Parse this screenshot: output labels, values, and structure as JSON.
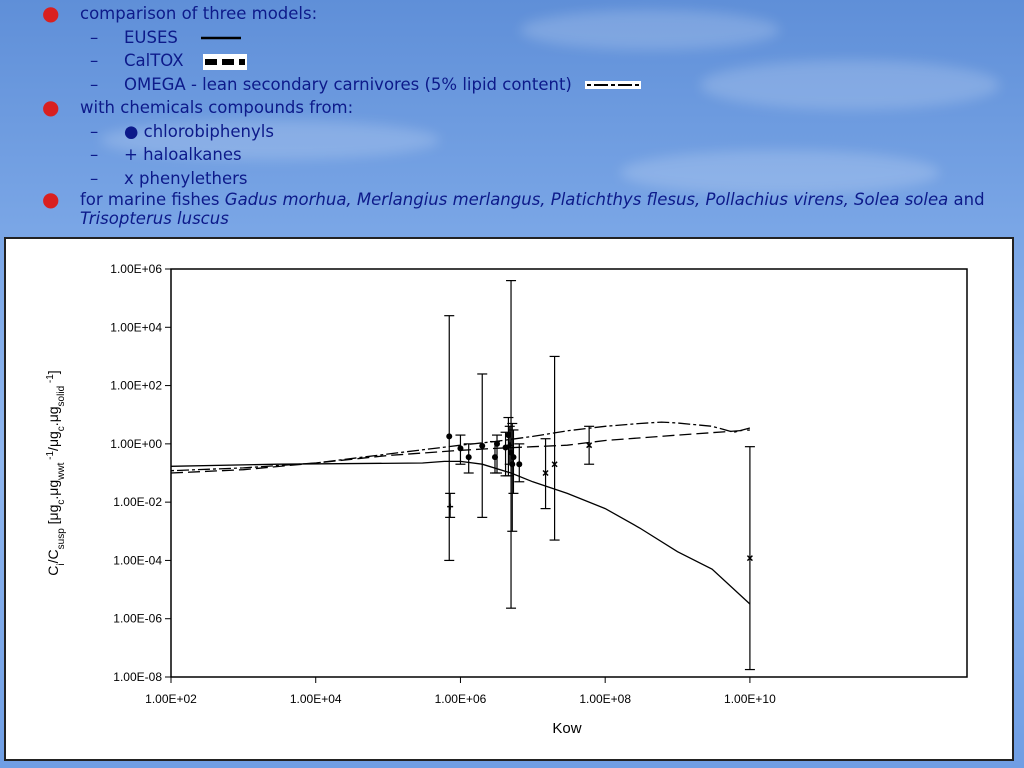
{
  "slide": {
    "bullet1": {
      "text": "comparison of three models:"
    },
    "models": [
      {
        "label": "EUSES",
        "style": "solid"
      },
      {
        "label": "CalTOX",
        "style": "dashed"
      },
      {
        "label": "OMEGA - lean secondary carnivores (5% lipid content)",
        "style": "dash-dot"
      }
    ],
    "bullet2": {
      "text": "with chemicals compounds from:"
    },
    "compounds": [
      {
        "label": "● chlorobiphenyls"
      },
      {
        "label": "+ haloalkanes"
      },
      {
        "label": "x phenylethers"
      }
    ],
    "bullet3": {
      "prefix": "for marine fishes ",
      "species_list": "Gadus morhua, Merlangius merlangus, Platichthys flesus, Pollachius virens, Solea solea",
      "and_word": " and ",
      "last_species": "Trisopterus luscus"
    },
    "colors": {
      "text": "#0d1a8a",
      "bullet": "#d92020"
    }
  },
  "chart_data": {
    "type": "scatter",
    "xlabel": "Kow",
    "ylabel": "Ci/Csusp [μgc.μgwwt-1/μgc.μgsolid-1]",
    "ylabel_parts": {
      "c": "C",
      "i": "i",
      "slash": "/C",
      "susp": "susp",
      "open": " [μg",
      "c1": "c",
      "dot1": ".μg",
      "wwt": "wwt",
      "exp1": " -1",
      "mid": "/μg",
      "c2": "c",
      "dot2": ".μg",
      "solid": "solid",
      "exp2": " -1",
      "close": "]"
    },
    "x_scale": "log",
    "y_scale": "log",
    "xlim": [
      100,
      10000000000000
    ],
    "ylim": [
      1e-08,
      1000000
    ],
    "x_ticks": [
      {
        "value": 100,
        "label": "1.00E+02"
      },
      {
        "value": 10000,
        "label": "1.00E+04"
      },
      {
        "value": 1000000,
        "label": "1.00E+06"
      },
      {
        "value": 100000000,
        "label": "1.00E+08"
      },
      {
        "value": 10000000000,
        "label": "1.00E+10"
      }
    ],
    "y_ticks": [
      {
        "value": 1000000,
        "label": "1.00E+06"
      },
      {
        "value": 10000,
        "label": "1.00E+04"
      },
      {
        "value": 100,
        "label": "1.00E+02"
      },
      {
        "value": 1,
        "label": "1.00E+00"
      },
      {
        "value": 0.01,
        "label": "1.00E-02"
      },
      {
        "value": 0.0001,
        "label": "1.00E-04"
      },
      {
        "value": 1e-06,
        "label": "1.00E-06"
      },
      {
        "value": 1e-08,
        "label": "1.00E-08"
      }
    ],
    "grid": false,
    "lines": [
      {
        "model": "EUSES",
        "style": "solid",
        "points": [
          [
            100,
            0.17
          ],
          [
            3000,
            0.2
          ],
          [
            300000,
            0.22
          ],
          [
            600000,
            0.25
          ],
          [
            1000000,
            0.25
          ],
          [
            2000000,
            0.2
          ],
          [
            5000000,
            0.1
          ],
          [
            10000000,
            0.05
          ],
          [
            30000000,
            0.02
          ],
          [
            100000000,
            0.006
          ],
          [
            300000000,
            0.0013
          ],
          [
            1000000000,
            0.0002
          ],
          [
            3000000000,
            5e-05
          ],
          [
            10000000000,
            3.2e-06
          ]
        ]
      },
      {
        "model": "CalTOX",
        "style": "dashed",
        "points": [
          [
            100,
            0.1
          ],
          [
            1000,
            0.13
          ],
          [
            10000,
            0.22
          ],
          [
            100000,
            0.4
          ],
          [
            1000000,
            0.6
          ],
          [
            3000000,
            0.7
          ],
          [
            10000000,
            0.8
          ],
          [
            30000000,
            0.9
          ],
          [
            100000000,
            1.3
          ],
          [
            1000000000,
            2
          ],
          [
            10000000000,
            3
          ]
        ]
      },
      {
        "model": "OMEGA",
        "style": "dash-dot",
        "points": [
          [
            100,
            0.12
          ],
          [
            1000,
            0.15
          ],
          [
            10000,
            0.22
          ],
          [
            100000,
            0.45
          ],
          [
            1000000,
            0.9
          ],
          [
            3000000,
            1.2
          ],
          [
            10000000,
            1.8
          ],
          [
            30000000,
            2.8
          ],
          [
            100000000,
            4
          ],
          [
            300000000,
            5
          ],
          [
            600000000,
            5.6
          ],
          [
            1000000000,
            5.2
          ],
          [
            3000000000,
            4
          ],
          [
            6000000000,
            2.5
          ],
          [
            10000000000,
            3.5
          ]
        ]
      }
    ],
    "points": [
      {
        "group": "chlorobiphenyls",
        "marker": "dot",
        "x": 700000,
        "y": 1.8,
        "low": 0.0001,
        "high": 25000
      },
      {
        "group": "chlorobiphenyls",
        "marker": "dot",
        "x": 1000000,
        "y": 0.7,
        "low": 0.2,
        "high": 2
      },
      {
        "group": "chlorobiphenyls",
        "marker": "dot",
        "x": 1300000,
        "y": 0.35,
        "low": 0.1,
        "high": 1
      },
      {
        "group": "chlorobiphenyls",
        "marker": "dot",
        "x": 2000000,
        "y": 0.85,
        "low": 0.003,
        "high": 250
      },
      {
        "group": "chlorobiphenyls",
        "marker": "dot",
        "x": 3000000,
        "y": 0.35,
        "low": 0.1,
        "high": 1.2
      },
      {
        "group": "chlorobiphenyls",
        "marker": "dot",
        "x": 3200000,
        "y": 1.0,
        "low": 0.1,
        "high": 2
      },
      {
        "group": "chlorobiphenyls",
        "marker": "dot",
        "x": 4200000,
        "y": 0.75,
        "low": 0.08,
        "high": 2.5
      },
      {
        "group": "chlorobiphenyls",
        "marker": "dot",
        "x": 4600000,
        "y": 2.0,
        "low": 0.08,
        "high": 8
      },
      {
        "group": "chlorobiphenyls",
        "marker": "dot",
        "x": 5000000,
        "y": 0.5,
        "low": 2.3e-06,
        "high": 400000
      },
      {
        "group": "chlorobiphenyls",
        "marker": "dot",
        "x": 5200000,
        "y": 0.2,
        "low": 0.001,
        "high": 5
      },
      {
        "group": "chlorobiphenyls",
        "marker": "dot",
        "x": 5400000,
        "y": 0.35,
        "low": 0.02,
        "high": 3
      },
      {
        "group": "chlorobiphenyls",
        "marker": "dot",
        "x": 6500000,
        "y": 0.2,
        "low": 0.05,
        "high": 1
      },
      {
        "group": "haloalkanes",
        "marker": "plus",
        "x": 720000,
        "y": 0.007,
        "low": 0.003,
        "high": 0.02
      },
      {
        "group": "haloalkanes",
        "marker": "plus",
        "x": 4800000,
        "y": 0.9,
        "low": 0.2,
        "high": 4
      },
      {
        "group": "phenylethers",
        "marker": "x",
        "x": 15000000,
        "y": 0.1,
        "low": 0.006,
        "high": 1.5
      },
      {
        "group": "phenylethers",
        "marker": "x",
        "x": 20000000,
        "y": 0.2,
        "low": 0.0005,
        "high": 1000
      },
      {
        "group": "phenylethers",
        "marker": "x",
        "x": 60000000,
        "y": 0.9,
        "low": 0.2,
        "high": 4
      },
      {
        "group": "phenylethers",
        "marker": "x",
        "x": 10000000000,
        "y": 0.00012,
        "low": 1.8e-08,
        "high": 0.8
      }
    ]
  }
}
